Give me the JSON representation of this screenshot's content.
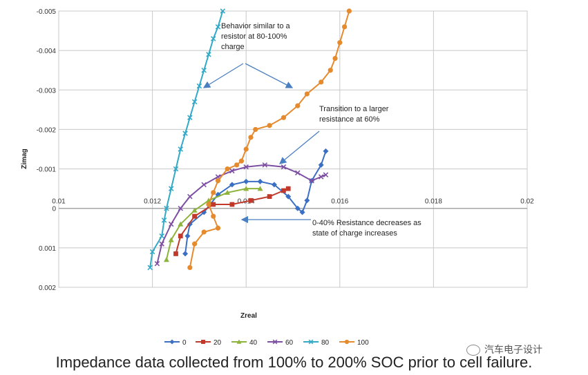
{
  "chart_data": {
    "type": "scatter",
    "title": "",
    "xlabel": "Zreal",
    "ylabel": "Zimag",
    "xlim": [
      0.01,
      0.02
    ],
    "ylim": [
      0.002,
      -0.005
    ],
    "y_axis_inverted": true,
    "xticks": [
      "0.01",
      "0.012",
      "0.014",
      "0.016",
      "0.018",
      "0.02"
    ],
    "yticks": [
      "-0.005",
      "-0.004",
      "-0.003",
      "-0.002",
      "-0.001",
      "0",
      "0.001",
      "0.002"
    ],
    "grid": true,
    "legend_position": "bottom",
    "series": [
      {
        "name": "0",
        "color": "#3a6fc4",
        "marker": "diamond",
        "points": [
          [
            0.0127,
            0.00115
          ],
          [
            0.01275,
            0.0007
          ],
          [
            0.0128,
            0.0004
          ],
          [
            0.0131,
            0.0001
          ],
          [
            0.0134,
            -0.00035
          ],
          [
            0.0137,
            -0.0006
          ],
          [
            0.014,
            -0.00068
          ],
          [
            0.0143,
            -0.00068
          ],
          [
            0.0146,
            -0.0006
          ],
          [
            0.0149,
            -0.0003
          ],
          [
            0.0151,
            0.0
          ],
          [
            0.0152,
            0.0001
          ],
          [
            0.0153,
            -0.0002
          ],
          [
            0.0154,
            -0.0007
          ],
          [
            0.0156,
            -0.0011
          ],
          [
            0.0157,
            -0.00145
          ]
        ]
      },
      {
        "name": "20",
        "color": "#c0392b",
        "marker": "square",
        "points": [
          [
            0.0125,
            0.00115
          ],
          [
            0.0126,
            0.0007
          ],
          [
            0.0129,
            0.0002
          ],
          [
            0.0133,
            -0.0001
          ],
          [
            0.0137,
            -0.0001
          ],
          [
            0.0141,
            -0.0002
          ],
          [
            0.0145,
            -0.0003
          ],
          [
            0.0148,
            -0.00045
          ],
          [
            0.0149,
            -0.0005
          ]
        ]
      },
      {
        "name": "40",
        "color": "#8db33a",
        "marker": "triangle",
        "points": [
          [
            0.0123,
            0.0013
          ],
          [
            0.0124,
            0.0008
          ],
          [
            0.0126,
            0.0004
          ],
          [
            0.0129,
            5e-05
          ],
          [
            0.0132,
            -0.0002
          ],
          [
            0.0136,
            -0.0004
          ],
          [
            0.014,
            -0.0005
          ],
          [
            0.0143,
            -0.0005
          ]
        ]
      },
      {
        "name": "60",
        "color": "#7d4fa3",
        "marker": "x",
        "points": [
          [
            0.0121,
            0.0014
          ],
          [
            0.0122,
            0.0009
          ],
          [
            0.0124,
            0.0004
          ],
          [
            0.0126,
            0.0
          ],
          [
            0.0128,
            -0.0003
          ],
          [
            0.0131,
            -0.0006
          ],
          [
            0.0134,
            -0.0008
          ],
          [
            0.0137,
            -0.00095
          ],
          [
            0.014,
            -0.00105
          ],
          [
            0.0144,
            -0.0011
          ],
          [
            0.0148,
            -0.00105
          ],
          [
            0.0151,
            -0.0009
          ],
          [
            0.0154,
            -0.0007
          ],
          [
            0.0156,
            -0.0008
          ],
          [
            0.0157,
            -0.00085
          ]
        ]
      },
      {
        "name": "80",
        "color": "#31a9c7",
        "marker": "x",
        "points": [
          [
            0.01195,
            0.0015
          ],
          [
            0.012,
            0.0011
          ],
          [
            0.0122,
            0.0007
          ],
          [
            0.01225,
            0.0003
          ],
          [
            0.0123,
            0.0
          ],
          [
            0.0124,
            -0.0005
          ],
          [
            0.0125,
            -0.001
          ],
          [
            0.0126,
            -0.0015
          ],
          [
            0.0127,
            -0.0019
          ],
          [
            0.0128,
            -0.0023
          ],
          [
            0.0129,
            -0.0027
          ],
          [
            0.013,
            -0.0031
          ],
          [
            0.0131,
            -0.0035
          ],
          [
            0.0132,
            -0.0039
          ],
          [
            0.0133,
            -0.0043
          ],
          [
            0.0134,
            -0.0046
          ],
          [
            0.0135,
            -0.005
          ]
        ]
      },
      {
        "name": "100",
        "color": "#e68a2e",
        "marker": "circle",
        "points": [
          [
            0.0128,
            0.0015
          ],
          [
            0.0129,
            0.0009
          ],
          [
            0.0131,
            0.0006
          ],
          [
            0.0134,
            0.0005
          ],
          [
            0.0133,
            0.0002
          ],
          [
            0.0132,
            -0.0001
          ],
          [
            0.0133,
            -0.0004
          ],
          [
            0.0134,
            -0.0007
          ],
          [
            0.0136,
            -0.001
          ],
          [
            0.0138,
            -0.0011
          ],
          [
            0.0139,
            -0.0012
          ],
          [
            0.014,
            -0.0015
          ],
          [
            0.0141,
            -0.0018
          ],
          [
            0.0142,
            -0.002
          ],
          [
            0.0145,
            -0.0021
          ],
          [
            0.0148,
            -0.0023
          ],
          [
            0.0151,
            -0.0026
          ],
          [
            0.0153,
            -0.0029
          ],
          [
            0.0156,
            -0.0032
          ],
          [
            0.0158,
            -0.0035
          ],
          [
            0.0159,
            -0.0038
          ],
          [
            0.016,
            -0.0042
          ],
          [
            0.0161,
            -0.0046
          ],
          [
            0.0162,
            -0.005
          ]
        ]
      }
    ],
    "annotations": [
      {
        "id": "resistor",
        "lines": [
          "Behavior similar to a",
          "resistor at 80-100%",
          "charge"
        ]
      },
      {
        "id": "transition",
        "lines": [
          "Transition to a larger",
          "resistance at 60%"
        ]
      },
      {
        "id": "decrease",
        "lines": [
          "0-40% Resistance decreases as",
          "state of charge increases"
        ]
      }
    ]
  },
  "caption": "Impedance data collected from 100% to 200% SOC prior to cell failure.",
  "watermark": "汽车电子设计",
  "colors": {
    "grid": "#c8c8c8",
    "axis": "#9a9a9a",
    "arrow": "#4a7fc1"
  }
}
